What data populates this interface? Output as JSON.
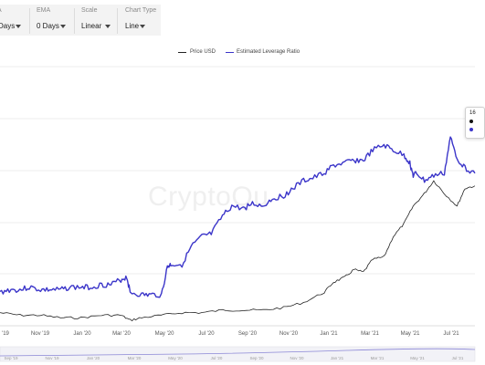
{
  "controls": [
    {
      "label": "A",
      "value": "Days"
    },
    {
      "label": "EMA",
      "value": "0 Days"
    },
    {
      "label": "Scale",
      "value": "Linear"
    },
    {
      "label": "Chart Type",
      "value": "Line"
    }
  ],
  "watermark": "CryptoQu",
  "tooltip": {
    "date": "16"
  },
  "colors": {
    "price": "#222222",
    "leverage": "#3b35c9",
    "axis": "#dddddd",
    "grid": "#e6e6e6"
  },
  "chart_data": {
    "type": "line",
    "legend": [
      "Price USD",
      "Estimated Leverage Ratio"
    ],
    "legend_position": "top-center",
    "grid": "horizontal",
    "x_tick_labels": [
      "'19",
      "Nov '19",
      "Jan '20",
      "Mar '20",
      "May '20",
      "Jul '20",
      "Sep '20",
      "Nov '20",
      "Jan '21",
      "Mar '21",
      "May '21",
      "Jul '21"
    ],
    "navigator_tick_labels": [
      "Sep '19",
      "Nov '19",
      "Jan '20",
      "Mar '20",
      "May '20",
      "Jul '20",
      "Sep '20",
      "Nov '20",
      "Jan '21",
      "Mar '21",
      "May '21",
      "Jul '21"
    ],
    "x_range": [
      "2019-09-01",
      "2021-08-16"
    ],
    "y_range": [
      0,
      1
    ],
    "y_axis_labels_visible": false,
    "series": [
      {
        "name": "Estimated Leverage Ratio",
        "x": [
          "2019-09-01",
          "2019-09-15",
          "2019-10-01",
          "2019-10-15",
          "2019-11-01",
          "2019-11-15",
          "2019-12-01",
          "2019-12-15",
          "2020-01-01",
          "2020-01-15",
          "2020-02-01",
          "2020-02-15",
          "2020-03-01",
          "2020-03-10",
          "2020-03-15",
          "2020-04-01",
          "2020-04-15",
          "2020-05-01",
          "2020-05-10",
          "2020-05-15",
          "2020-06-01",
          "2020-06-15",
          "2020-07-01",
          "2020-07-15",
          "2020-08-01",
          "2020-08-15",
          "2020-09-01",
          "2020-09-15",
          "2020-10-01",
          "2020-10-15",
          "2020-11-01",
          "2020-11-15",
          "2020-12-01",
          "2020-12-15",
          "2021-01-01",
          "2021-01-15",
          "2021-02-01",
          "2021-02-15",
          "2021-03-01",
          "2021-03-15",
          "2021-04-01",
          "2021-04-15",
          "2021-05-01",
          "2021-05-10",
          "2021-05-15",
          "2021-05-20",
          "2021-06-01",
          "2021-06-15",
          "2021-07-01",
          "2021-07-10",
          "2021-07-20",
          "2021-08-01",
          "2021-08-16"
        ],
        "values": [
          0.11,
          0.12,
          0.12,
          0.13,
          0.12,
          0.12,
          0.12,
          0.13,
          0.13,
          0.13,
          0.14,
          0.14,
          0.16,
          0.17,
          0.11,
          0.1,
          0.1,
          0.1,
          0.21,
          0.22,
          0.22,
          0.29,
          0.33,
          0.34,
          0.41,
          0.45,
          0.44,
          0.46,
          0.45,
          0.48,
          0.49,
          0.52,
          0.55,
          0.56,
          0.58,
          0.61,
          0.62,
          0.63,
          0.63,
          0.67,
          0.69,
          0.67,
          0.65,
          0.62,
          0.57,
          0.58,
          0.55,
          0.57,
          0.58,
          0.72,
          0.64,
          0.6,
          0.58
        ]
      },
      {
        "name": "Price USD",
        "x": [
          "2019-09-01",
          "2019-10-01",
          "2019-11-01",
          "2019-12-01",
          "2020-01-01",
          "2020-02-01",
          "2020-03-01",
          "2020-03-15",
          "2020-04-01",
          "2020-05-01",
          "2020-06-01",
          "2020-07-01",
          "2020-08-01",
          "2020-09-01",
          "2020-10-01",
          "2020-11-01",
          "2020-12-01",
          "2021-01-01",
          "2021-01-15",
          "2021-02-01",
          "2021-02-15",
          "2021-03-01",
          "2021-03-15",
          "2021-04-01",
          "2021-04-15",
          "2021-05-01",
          "2021-05-15",
          "2021-06-01",
          "2021-06-15",
          "2021-07-01",
          "2021-07-20",
          "2021-08-01",
          "2021-08-16"
        ],
        "values": [
          0.03,
          0.02,
          0.02,
          0.01,
          0.01,
          0.02,
          0.02,
          0.0,
          0.01,
          0.02,
          0.03,
          0.03,
          0.04,
          0.04,
          0.04,
          0.05,
          0.07,
          0.11,
          0.15,
          0.17,
          0.2,
          0.19,
          0.24,
          0.25,
          0.33,
          0.38,
          0.45,
          0.5,
          0.55,
          0.5,
          0.45,
          0.52,
          0.53
        ]
      }
    ]
  }
}
